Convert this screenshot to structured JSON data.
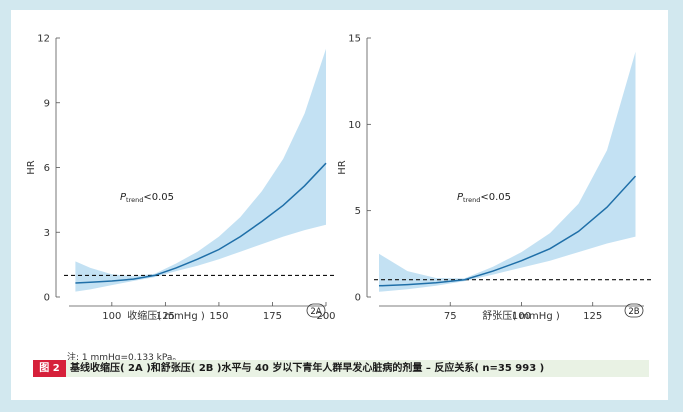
{
  "chart_data": [
    {
      "panel": "2A",
      "type": "line",
      "xlabel": "收缩压( mmHg )",
      "ylabel": "HR",
      "xlim": [
        80,
        200
      ],
      "ylim": [
        0,
        12
      ],
      "x_ticks": [
        100,
        125,
        150,
        175,
        200
      ],
      "y_ticks": [
        0,
        3,
        6,
        9,
        12
      ],
      "reference_line": 1,
      "annotation": {
        "p": "P",
        "sub": "trend",
        "rest": "<0.05"
      },
      "series": [
        {
          "x": [
            83,
            90,
            100,
            110,
            120,
            130,
            140,
            150,
            160,
            170,
            180,
            190,
            200
          ],
          "y": [
            0.65,
            0.68,
            0.74,
            0.83,
            1.0,
            1.35,
            1.75,
            2.2,
            2.8,
            3.5,
            4.25,
            5.15,
            6.2
          ],
          "lower": [
            0.25,
            0.35,
            0.55,
            0.74,
            0.92,
            1.2,
            1.45,
            1.75,
            2.1,
            2.45,
            2.8,
            3.1,
            3.35
          ],
          "upper": [
            1.65,
            1.35,
            1.05,
            0.96,
            1.08,
            1.55,
            2.1,
            2.8,
            3.7,
            4.9,
            6.4,
            8.5,
            11.5
          ]
        }
      ],
      "colors": {
        "line": "#1f6fa8",
        "band": "#c3e1f3"
      }
    },
    {
      "panel": "2B",
      "type": "line",
      "xlabel": "舒张压( mmHg )",
      "ylabel": "HR",
      "xlim": [
        50,
        143
      ],
      "ylim": [
        0,
        15
      ],
      "x_ticks": [
        75,
        100,
        125
      ],
      "y_ticks": [
        0,
        5,
        10,
        15
      ],
      "reference_line": 1,
      "annotation": {
        "p": "P",
        "sub": "trend",
        "rest": "<0.05"
      },
      "series": [
        {
          "x": [
            50,
            60,
            70,
            80,
            90,
            100,
            110,
            120,
            130,
            140
          ],
          "y": [
            0.65,
            0.72,
            0.82,
            1.0,
            1.5,
            2.1,
            2.8,
            3.8,
            5.2,
            7.0
          ],
          "lower": [
            0.3,
            0.45,
            0.65,
            0.92,
            1.3,
            1.7,
            2.1,
            2.6,
            3.1,
            3.5
          ],
          "upper": [
            2.5,
            1.5,
            1.1,
            1.08,
            1.75,
            2.6,
            3.7,
            5.4,
            8.5,
            14.2
          ]
        }
      ],
      "colors": {
        "line": "#1f6fa8",
        "band": "#c3e1f3"
      }
    }
  ],
  "panel_labels": [
    "2A",
    "2B"
  ],
  "note": "注: 1 mmHg=0.133 kPa。",
  "figure_tag": "图 2",
  "caption": "基线收缩压( 2A )和舒张压( 2B )水平与 40 岁以下青年人群早发心脏病的剂量 – 反应关系( n=35 993 )"
}
